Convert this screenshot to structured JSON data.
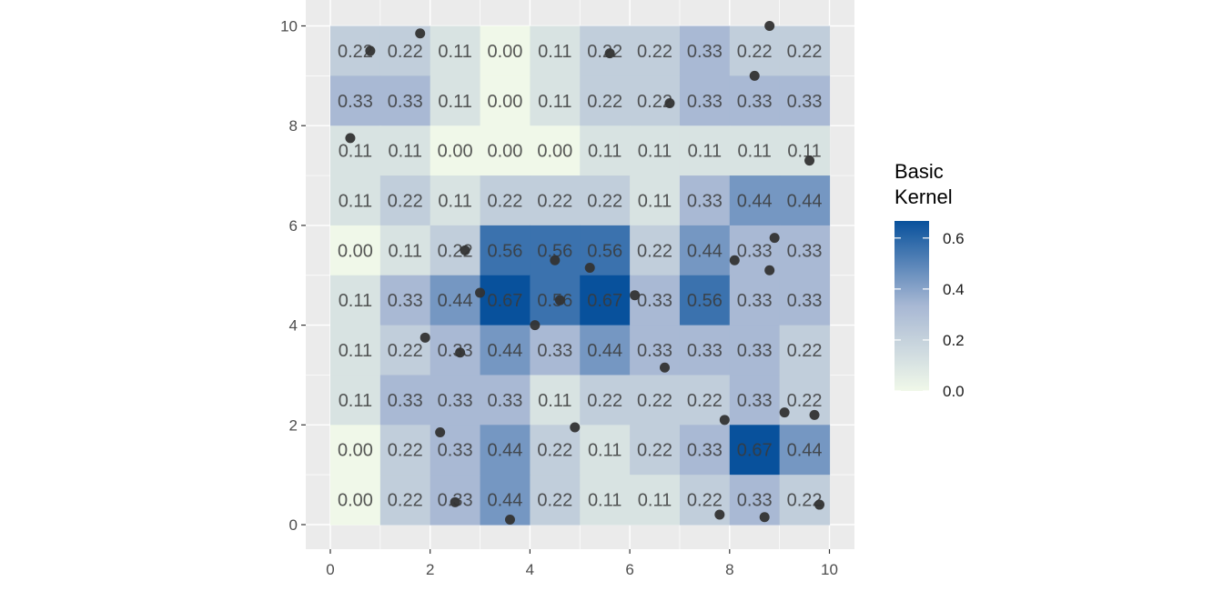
{
  "chart_data": {
    "type": "heatmap",
    "title": "",
    "xlabel": "",
    "ylabel": "",
    "xlim": [
      -0.5,
      10.5
    ],
    "ylim": [
      -0.5,
      10.5
    ],
    "x_ticks": [
      0,
      2,
      4,
      6,
      8,
      10
    ],
    "y_ticks": [
      0,
      2,
      4,
      6,
      8,
      10
    ],
    "x_tick_labels": [
      "0",
      "2",
      "4",
      "6",
      "8",
      "10"
    ],
    "y_tick_labels": [
      "0",
      "2",
      "4",
      "6",
      "8",
      "10"
    ],
    "grid": true,
    "cell_size": 1,
    "rows_top_to_bottom": [
      [
        "0.22",
        "0.22",
        "0.11",
        "0.00",
        "0.11",
        "0.22",
        "0.22",
        "0.33",
        "0.22",
        "0.22"
      ],
      [
        "0.33",
        "0.33",
        "0.11",
        "0.00",
        "0.11",
        "0.22",
        "0.22",
        "0.33",
        "0.33",
        "0.33"
      ],
      [
        "0.11",
        "0.11",
        "0.00",
        "0.00",
        "0.00",
        "0.11",
        "0.11",
        "0.11",
        "0.11",
        "0.11"
      ],
      [
        "0.11",
        "0.22",
        "0.11",
        "0.22",
        "0.22",
        "0.22",
        "0.11",
        "0.33",
        "0.44",
        "0.44"
      ],
      [
        "0.00",
        "0.11",
        "0.22",
        "0.56",
        "0.56",
        "0.56",
        "0.22",
        "0.44",
        "0.33",
        "0.33"
      ],
      [
        "0.11",
        "0.33",
        "0.44",
        "0.67",
        "0.56",
        "0.67",
        "0.33",
        "0.56",
        "0.33",
        "0.33"
      ],
      [
        "0.11",
        "0.22",
        "0.33",
        "0.44",
        "0.33",
        "0.44",
        "0.33",
        "0.33",
        "0.33",
        "0.22"
      ],
      [
        "0.11",
        "0.33",
        "0.33",
        "0.33",
        "0.11",
        "0.22",
        "0.22",
        "0.22",
        "0.33",
        "0.22"
      ],
      [
        "0.00",
        "0.22",
        "0.33",
        "0.44",
        "0.22",
        "0.11",
        "0.22",
        "0.33",
        "0.67",
        "0.44"
      ],
      [
        "0.00",
        "0.22",
        "0.33",
        "0.44",
        "0.22",
        "0.11",
        "0.11",
        "0.22",
        "0.33",
        "0.22"
      ]
    ],
    "points": [
      [
        0.8,
        9.5
      ],
      [
        1.8,
        9.85
      ],
      [
        5.6,
        9.45
      ],
      [
        8.8,
        10.0
      ],
      [
        8.5,
        9.0
      ],
      [
        6.8,
        8.45
      ],
      [
        0.4,
        7.75
      ],
      [
        9.6,
        7.3
      ],
      [
        2.7,
        5.5
      ],
      [
        4.5,
        5.3
      ],
      [
        5.2,
        5.15
      ],
      [
        8.9,
        5.75
      ],
      [
        8.1,
        5.3
      ],
      [
        8.8,
        5.1
      ],
      [
        3.0,
        4.65
      ],
      [
        4.6,
        4.5
      ],
      [
        6.1,
        4.6
      ],
      [
        4.1,
        4.0
      ],
      [
        1.9,
        3.75
      ],
      [
        2.6,
        3.45
      ],
      [
        6.7,
        3.15
      ],
      [
        9.1,
        2.25
      ],
      [
        9.7,
        2.2
      ],
      [
        7.9,
        2.1
      ],
      [
        4.9,
        1.95
      ],
      [
        2.2,
        1.85
      ],
      [
        2.5,
        0.45
      ],
      [
        3.6,
        0.1
      ],
      [
        7.8,
        0.2
      ],
      [
        8.7,
        0.15
      ],
      [
        9.8,
        0.4
      ]
    ],
    "legend": {
      "title_lines": [
        "Basic",
        "Kernel"
      ],
      "placement": "right",
      "ticks": [
        0.0,
        0.2,
        0.4,
        0.6
      ],
      "tick_labels": [
        "0.0",
        "0.2",
        "0.4",
        "0.6"
      ],
      "range": [
        0,
        0.667
      ]
    },
    "colors": {
      "low": "#f0f8e9",
      "mid": "#a8b8d4",
      "high": "#08519c",
      "panel_background": "#ebebeb",
      "grid": "#ffffff",
      "point": "#333333"
    }
  }
}
